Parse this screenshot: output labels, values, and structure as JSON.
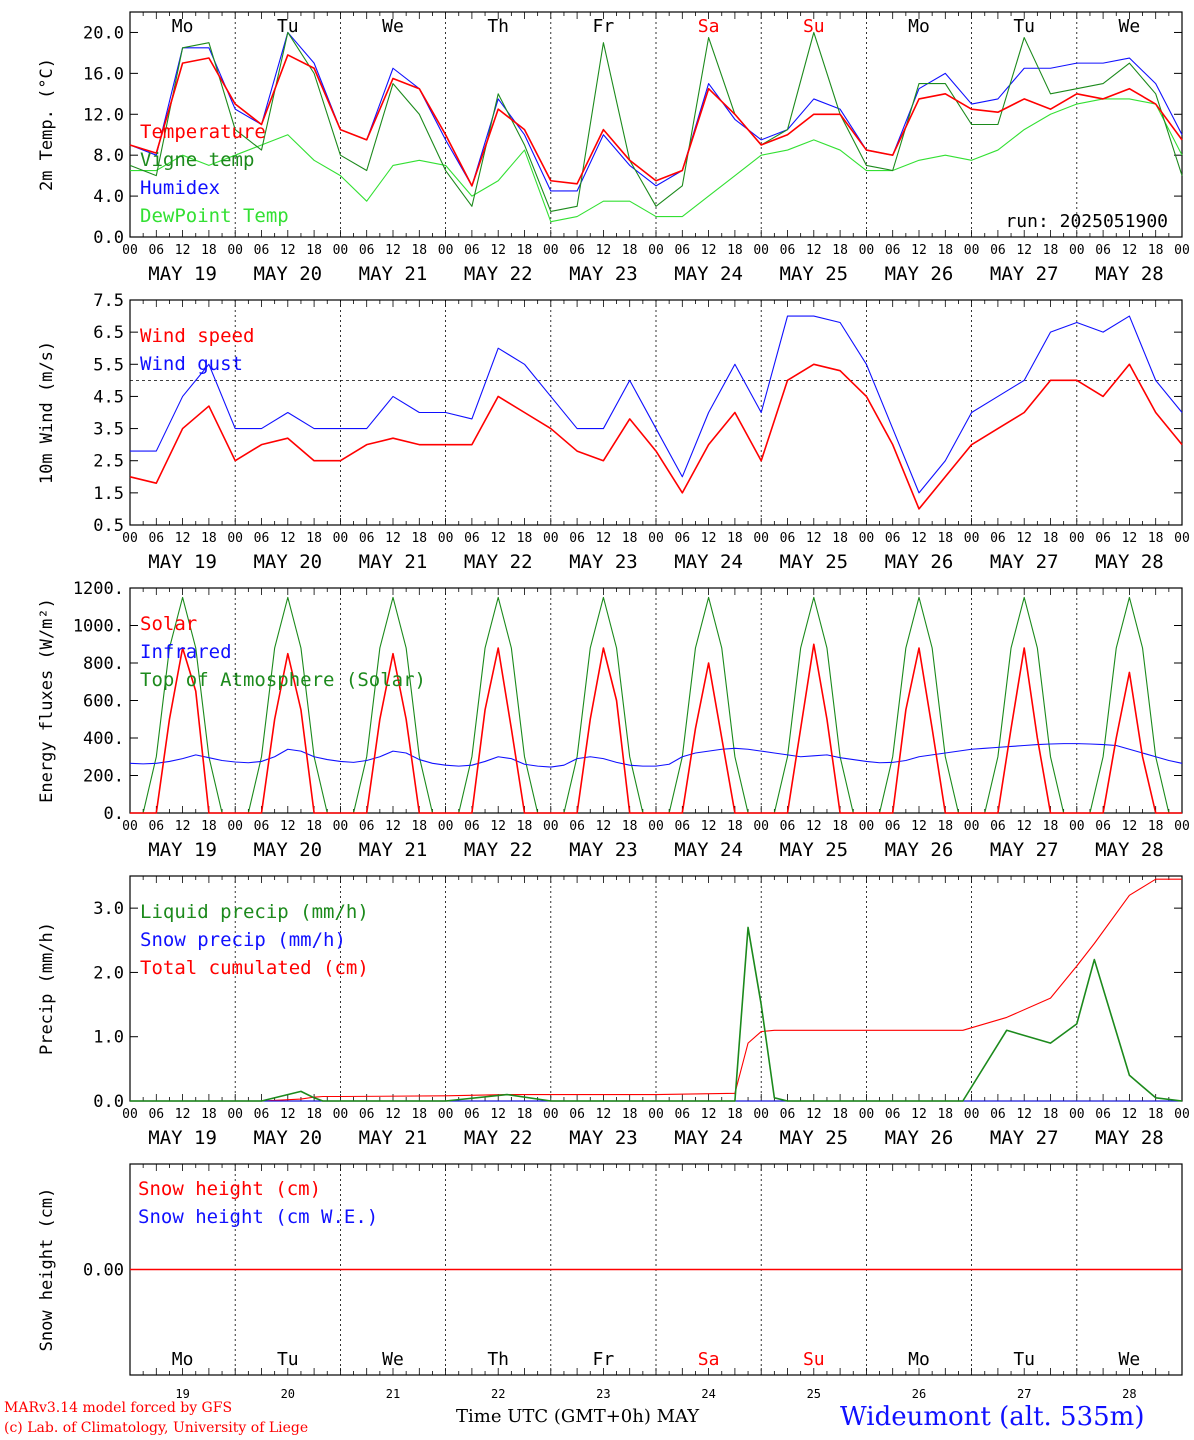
{
  "colors": {
    "red": "#ff0000",
    "green": "#1c8a1c",
    "blue": "#1010ff",
    "light_green": "#33e033",
    "black": "#000000"
  },
  "x_axis": {
    "hour_ticks": [
      "00",
      "06",
      "12",
      "18"
    ],
    "end_tick": "00",
    "date_labels": [
      "MAY 19",
      "MAY 20",
      "MAY 21",
      "MAY 22",
      "MAY 23",
      "MAY 24",
      "MAY 25",
      "MAY 26",
      "MAY 27",
      "MAY 28"
    ],
    "weekdays": [
      "Mo",
      "Tu",
      "We",
      "Th",
      "Fr",
      "Sa",
      "Su",
      "Mo",
      "Tu",
      "We"
    ],
    "weekend_days": [
      5,
      6
    ],
    "day_numbers": [
      "19",
      "20",
      "21",
      "22",
      "23",
      "24",
      "25",
      "26",
      "27",
      "28"
    ],
    "title": "Time UTC (GMT+0h)",
    "month": "MAY"
  },
  "footer": {
    "credit1": "MARv3.14 model forced by GFS",
    "credit2": "(c) Lab. of Climatology, University of Liege",
    "station": "Wideumont (alt. 535m)"
  },
  "chart_data": [
    {
      "id": "temperature",
      "type": "line",
      "ylabel": "2m Temp. (°C)",
      "ylim": [
        0,
        22
      ],
      "yticks": [
        "0.0",
        "4.0",
        "8.0",
        "12.0",
        "16.0",
        "20.0"
      ],
      "ytick_values": [
        0,
        4,
        8,
        12,
        16,
        20
      ],
      "x_hours": [
        0,
        6,
        12,
        18,
        24,
        30,
        36,
        42,
        48,
        54,
        60,
        66,
        72,
        78,
        84,
        90,
        96,
        102,
        108,
        114,
        120,
        126,
        132,
        138,
        144,
        150,
        156,
        162,
        168,
        174,
        180,
        186,
        192,
        198,
        204,
        210,
        216,
        222,
        228,
        234,
        240
      ],
      "annotation": "run: 2025051900",
      "series": [
        {
          "name": "Temperature",
          "color": "#ff0000",
          "values": [
            9.0,
            8.2,
            17.0,
            17.5,
            13.0,
            11.0,
            17.8,
            16.5,
            10.5,
            9.5,
            15.5,
            14.5,
            10.0,
            5.0,
            12.5,
            10.5,
            5.5,
            5.2,
            10.5,
            7.5,
            5.5,
            6.5,
            14.5,
            12.0,
            9.0,
            10.0,
            12.0,
            12.0,
            8.5,
            8.0,
            13.5,
            14.0,
            12.5,
            12.2,
            13.5,
            12.5,
            14.0,
            13.5,
            14.5,
            13.0,
            9.5
          ]
        },
        {
          "name": "Vigne temp",
          "color": "#1c8a1c",
          "values": [
            7.0,
            6.0,
            18.5,
            19.0,
            10.5,
            8.5,
            20.0,
            16.0,
            8.0,
            6.5,
            15.0,
            12.0,
            6.5,
            3.0,
            14.0,
            9.0,
            2.5,
            3.0,
            19.0,
            7.5,
            3.0,
            5.0,
            19.5,
            12.0,
            9.0,
            10.5,
            20.0,
            12.0,
            7.0,
            6.5,
            15.0,
            15.0,
            11.0,
            11.0,
            19.5,
            14.0,
            14.5,
            15.0,
            17.0,
            14.0,
            6.0
          ]
        },
        {
          "name": "Humidex",
          "color": "#1010ff",
          "values": [
            9.0,
            8.0,
            18.5,
            18.5,
            12.5,
            11.0,
            20.0,
            17.0,
            10.5,
            9.5,
            16.5,
            14.5,
            9.5,
            5.0,
            13.5,
            10.0,
            4.5,
            4.5,
            10.0,
            7.0,
            5.0,
            6.5,
            15.0,
            11.5,
            9.5,
            10.5,
            13.5,
            12.5,
            8.5,
            8.0,
            14.5,
            16.0,
            13.0,
            13.5,
            16.5,
            16.5,
            17.0,
            17.0,
            17.5,
            15.0,
            10.0
          ]
        },
        {
          "name": "DewPoint Temp",
          "color": "#33e033",
          "values": [
            6.5,
            6.5,
            8.0,
            7.0,
            8.0,
            9.0,
            10.0,
            7.5,
            6.0,
            3.5,
            7.0,
            7.5,
            7.0,
            4.0,
            5.5,
            8.5,
            1.5,
            2.0,
            3.5,
            3.5,
            2.0,
            2.0,
            4.0,
            6.0,
            8.0,
            8.5,
            9.5,
            8.5,
            6.5,
            6.5,
            7.5,
            8.0,
            7.5,
            8.5,
            10.5,
            12.0,
            13.0,
            13.5,
            13.5,
            13.0,
            8.0
          ]
        }
      ]
    },
    {
      "id": "wind",
      "type": "line",
      "ylabel": "10m Wind (m/s)",
      "ylim": [
        0.5,
        7.5
      ],
      "yticks": [
        "0.5",
        "1.5",
        "2.5",
        "3.5",
        "4.5",
        "5.5",
        "6.5",
        "7.5"
      ],
      "ytick_values": [
        0.5,
        1.5,
        2.5,
        3.5,
        4.5,
        5.5,
        6.5,
        7.5
      ],
      "reference_line": 5.0,
      "x_hours": [
        0,
        6,
        12,
        18,
        24,
        30,
        36,
        42,
        48,
        54,
        60,
        66,
        72,
        78,
        84,
        90,
        96,
        102,
        108,
        114,
        120,
        126,
        132,
        138,
        144,
        150,
        156,
        162,
        168,
        174,
        180,
        186,
        192,
        198,
        204,
        210,
        216,
        222,
        228,
        234,
        240
      ],
      "series": [
        {
          "name": "Wind speed",
          "color": "#ff0000",
          "values": [
            2.0,
            1.8,
            3.5,
            4.2,
            2.5,
            3.0,
            3.2,
            2.5,
            2.5,
            3.0,
            3.2,
            3.0,
            3.0,
            3.0,
            4.5,
            4.0,
            3.5,
            2.8,
            2.5,
            3.8,
            2.8,
            1.5,
            3.0,
            4.0,
            2.5,
            5.0,
            5.5,
            5.3,
            4.5,
            3.0,
            1.0,
            2.0,
            3.0,
            3.5,
            4.0,
            5.0,
            5.0,
            4.5,
            5.5,
            4.0,
            3.0
          ]
        },
        {
          "name": "Wind gust",
          "color": "#1010ff",
          "values": [
            2.8,
            2.8,
            4.5,
            5.5,
            3.5,
            3.5,
            4.0,
            3.5,
            3.5,
            3.5,
            4.5,
            4.0,
            4.0,
            3.8,
            6.0,
            5.5,
            4.5,
            3.5,
            3.5,
            5.0,
            3.5,
            2.0,
            4.0,
            5.5,
            4.0,
            7.0,
            7.0,
            6.8,
            5.5,
            3.5,
            1.5,
            2.5,
            4.0,
            4.5,
            5.0,
            6.5,
            6.8,
            6.5,
            7.0,
            5.0,
            4.0
          ]
        }
      ]
    },
    {
      "id": "energy",
      "type": "line",
      "ylabel": "Energy fluxes (W/m²)",
      "ylim": [
        0,
        1200
      ],
      "yticks": [
        "0.",
        "200.",
        "400.",
        "600.",
        "800.",
        "1000.",
        "1200."
      ],
      "ytick_values": [
        0,
        200,
        400,
        600,
        800,
        1000,
        1200
      ],
      "x_hours": [
        0,
        3,
        6,
        9,
        12,
        15,
        18,
        21,
        24,
        27,
        30,
        33,
        36,
        39,
        42,
        45,
        48,
        51,
        54,
        57,
        60,
        63,
        66,
        69,
        72,
        75,
        78,
        81,
        84,
        87,
        90,
        93,
        96,
        99,
        102,
        105,
        108,
        111,
        114,
        117,
        120,
        123,
        126,
        129,
        132,
        135,
        138,
        141,
        144,
        147,
        150,
        153,
        156,
        159,
        162,
        165,
        168,
        171,
        174,
        177,
        180,
        183,
        186,
        189,
        192,
        195,
        198,
        201,
        204,
        207,
        210,
        213,
        216,
        219,
        222,
        225,
        228,
        231,
        234,
        237,
        240
      ],
      "series": [
        {
          "name": "Solar",
          "color": "#ff0000",
          "values": [
            0,
            0,
            0,
            500,
            880,
            650,
            0,
            0,
            0,
            0,
            0,
            500,
            850,
            550,
            0,
            0,
            0,
            0,
            0,
            500,
            850,
            500,
            0,
            0,
            0,
            0,
            0,
            550,
            880,
            450,
            0,
            0,
            0,
            0,
            0,
            500,
            880,
            600,
            0,
            0,
            0,
            0,
            0,
            450,
            800,
            400,
            0,
            0,
            0,
            0,
            0,
            450,
            900,
            500,
            0,
            0,
            0,
            0,
            0,
            550,
            880,
            450,
            0,
            0,
            0,
            0,
            0,
            450,
            880,
            400,
            0,
            0,
            0,
            0,
            0,
            400,
            750,
            300,
            0,
            0,
            0
          ]
        },
        {
          "name": "Infrared",
          "color": "#1010ff",
          "values": [
            265,
            262,
            265,
            275,
            290,
            310,
            295,
            280,
            272,
            268,
            275,
            300,
            340,
            330,
            300,
            285,
            275,
            270,
            280,
            300,
            330,
            320,
            285,
            265,
            255,
            250,
            255,
            275,
            300,
            290,
            260,
            250,
            245,
            255,
            290,
            300,
            290,
            270,
            255,
            250,
            250,
            260,
            300,
            320,
            330,
            340,
            345,
            340,
            330,
            320,
            310,
            300,
            305,
            310,
            295,
            285,
            275,
            268,
            270,
            280,
            300,
            310,
            320,
            330,
            340,
            345,
            350,
            355,
            360,
            365,
            368,
            370,
            370,
            368,
            365,
            360,
            340,
            320,
            300,
            280,
            265
          ]
        },
        {
          "name": "Top of Atmosphere (Solar)",
          "color": "#1c8a1c",
          "values": [
            0,
            0,
            300,
            880,
            1150,
            880,
            300,
            0,
            0,
            0,
            300,
            880,
            1150,
            880,
            300,
            0,
            0,
            0,
            300,
            880,
            1150,
            880,
            300,
            0,
            0,
            0,
            300,
            880,
            1150,
            880,
            300,
            0,
            0,
            0,
            300,
            880,
            1150,
            880,
            300,
            0,
            0,
            0,
            300,
            880,
            1150,
            880,
            300,
            0,
            0,
            0,
            300,
            880,
            1150,
            880,
            300,
            0,
            0,
            0,
            300,
            880,
            1150,
            880,
            300,
            0,
            0,
            0,
            300,
            880,
            1150,
            880,
            300,
            0,
            0,
            0,
            300,
            880,
            1150,
            880,
            300,
            0,
            0
          ]
        }
      ]
    },
    {
      "id": "precip",
      "type": "line",
      "ylabel": "Precip (mm/h)",
      "ylim": [
        0,
        3.5
      ],
      "yticks": [
        "0.0",
        "1.0",
        "2.0",
        "3.0"
      ],
      "ytick_values": [
        0,
        1,
        2,
        3
      ],
      "x_hours": [
        0,
        30,
        39,
        42,
        44,
        48,
        72,
        86,
        96,
        120,
        138,
        141,
        144,
        147,
        150,
        160,
        190,
        200,
        210,
        216,
        220,
        228,
        234,
        240
      ],
      "series": [
        {
          "name": "Liquid precip (mm/h)",
          "color": "#1c8a1c",
          "values": [
            0,
            0,
            0.15,
            0.05,
            0,
            0,
            0,
            0.1,
            0,
            0,
            0,
            2.7,
            1.5,
            0.05,
            0,
            0,
            0,
            1.1,
            0.9,
            1.2,
            2.2,
            0.4,
            0.05,
            0
          ]
        },
        {
          "name": "Snow precip (mm/h)",
          "color": "#1010ff",
          "values": [
            0,
            0,
            0,
            0,
            0,
            0,
            0,
            0,
            0,
            0,
            0,
            0,
            0,
            0,
            0,
            0,
            0,
            0,
            0,
            0,
            0,
            0,
            0,
            0
          ]
        },
        {
          "name": "Total cumulated (cm)",
          "color": "#ff0000",
          "values": [
            0,
            0,
            0.03,
            0.06,
            0.07,
            0.07,
            0.08,
            0.1,
            0.1,
            0.1,
            0.12,
            0.9,
            1.08,
            1.1,
            1.1,
            1.1,
            1.1,
            1.3,
            1.6,
            2.1,
            2.45,
            3.2,
            3.45,
            3.45
          ]
        }
      ]
    },
    {
      "id": "snow",
      "type": "line",
      "ylabel": "Snow height (cm)",
      "ylim": [
        -1,
        1
      ],
      "yticks": [
        "0.00"
      ],
      "ytick_values": [
        0
      ],
      "x_hours": [
        0,
        240
      ],
      "series": [
        {
          "name": "Snow height (cm)",
          "color": "#ff0000",
          "values": [
            0,
            0
          ]
        },
        {
          "name": "Snow height (cm W.E.)",
          "color": "#1010ff",
          "values": [
            0,
            0
          ]
        }
      ]
    }
  ]
}
